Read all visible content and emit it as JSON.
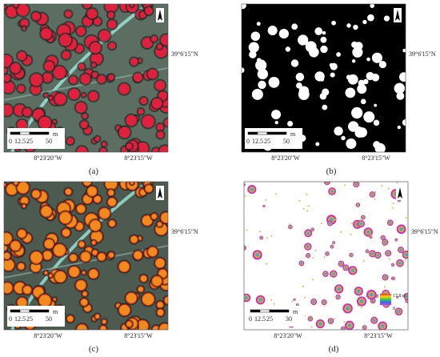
{
  "panels": [
    {
      "label": "(a)",
      "lat": "39°6'15\"N",
      "lon_left": "8°23'20\"W",
      "lon_right": "8°23'15\"W",
      "scale": [
        "0",
        "12.5",
        "25",
        "50"
      ],
      "scale_unit": "m"
    },
    {
      "label": "(b)",
      "lat": "39°6'15\"N",
      "lon_left": "8°23'20\"W",
      "lon_right": "8°23'15\"W",
      "scale": [
        "0",
        "12.5",
        "25",
        "50"
      ],
      "scale_unit": "m"
    },
    {
      "label": "(c)",
      "lat": "39°6'15\"N",
      "lon_left": "8°23'20\"W",
      "lon_right": "8°23'15\"W",
      "scale": [
        "0",
        "12.5",
        "25",
        "50"
      ],
      "scale_unit": "m"
    },
    {
      "label": "(d)",
      "lat": "39°6'15\"N",
      "lon_left": "8°23'20\"W",
      "lon_right": "8°23'15\"W",
      "scale": [
        "0",
        "12.5",
        "25",
        "30"
      ],
      "scale_unit": "m",
      "legend": {
        "max": "17.8 m",
        "min": "0"
      }
    }
  ]
}
